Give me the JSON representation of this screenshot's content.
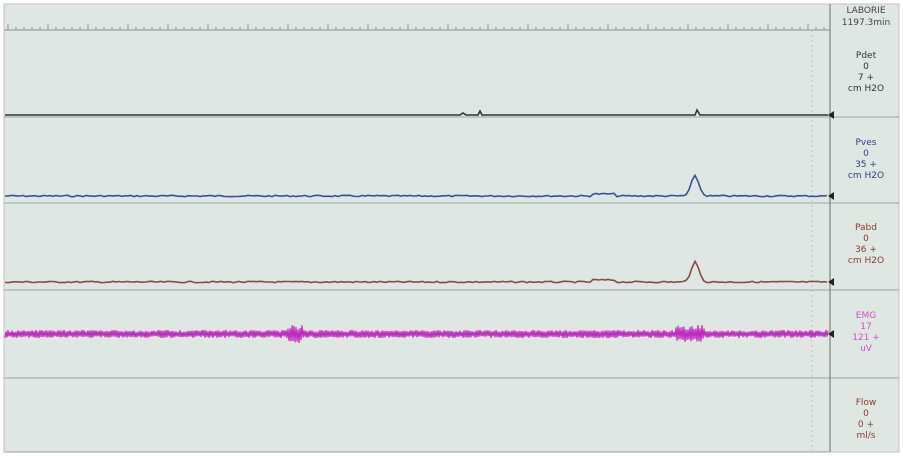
{
  "header": {
    "brand": "LABORIE",
    "time": "1197.3min"
  },
  "channels": [
    {
      "name": "Pdet",
      "lines": [
        "0",
        "7 +",
        "cm H2O"
      ]
    },
    {
      "name": "Pves",
      "lines": [
        "0",
        "35 +",
        "cm H2O"
      ]
    },
    {
      "name": "Pabd",
      "lines": [
        "0",
        "36 +",
        "cm H2O"
      ]
    },
    {
      "name": "EMG",
      "lines": [
        "17",
        "121 +",
        "uV"
      ]
    },
    {
      "name": "Flow",
      "lines": [
        "0",
        "0 +",
        "ml/s"
      ]
    }
  ]
}
